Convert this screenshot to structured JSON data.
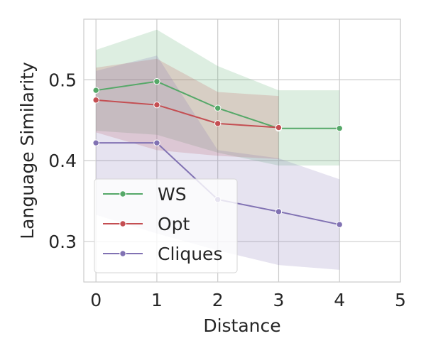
{
  "chart_data": {
    "type": "line",
    "xlabel": "Distance",
    "ylabel": "Language Similarity",
    "xlim": [
      -0.2,
      5.0
    ],
    "ylim": [
      0.25,
      0.575
    ],
    "x_ticks": [
      0,
      1,
      2,
      3,
      4,
      5
    ],
    "y_ticks": [
      0.3,
      0.4,
      0.5
    ],
    "x_tick_labels": [
      "0",
      "1",
      "2",
      "3",
      "4",
      "5"
    ],
    "y_tick_labels": [
      "0.3",
      "0.4",
      "0.5"
    ],
    "grid": true,
    "legend_position": "lower-left",
    "series": [
      {
        "name": "WS",
        "color": "#55a868",
        "x": [
          0,
          1,
          2,
          3,
          4
        ],
        "y": [
          0.487,
          0.498,
          0.465,
          0.44,
          0.44
        ],
        "ci_lower": [
          0.437,
          0.432,
          0.41,
          0.394,
          0.394
        ],
        "ci_upper": [
          0.537,
          0.562,
          0.517,
          0.487,
          0.487
        ]
      },
      {
        "name": "Opt",
        "color": "#c44e52",
        "x": [
          0,
          1,
          2,
          3
        ],
        "y": [
          0.475,
          0.469,
          0.446,
          0.441
        ],
        "ci_lower": [
          0.435,
          0.413,
          0.406,
          0.402
        ],
        "ci_upper": [
          0.515,
          0.526,
          0.485,
          0.48
        ]
      },
      {
        "name": "Cliques",
        "color": "#8172b3",
        "x": [
          0,
          1,
          2,
          3,
          4
        ],
        "y": [
          0.422,
          0.422,
          0.352,
          0.337,
          0.321
        ],
        "ci_lower": [
          0.333,
          0.31,
          0.289,
          0.271,
          0.265
        ],
        "ci_upper": [
          0.511,
          0.53,
          0.413,
          0.403,
          0.377
        ]
      }
    ]
  }
}
